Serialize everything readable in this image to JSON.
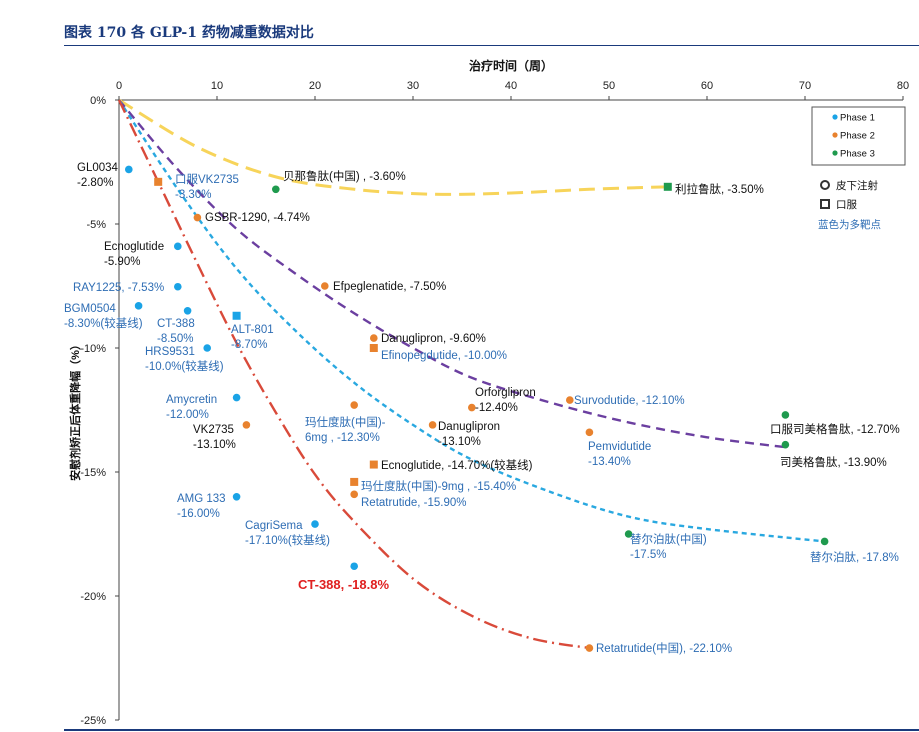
{
  "page": {
    "title": "图表 170 各 GLP-1 药物减重数据对比"
  },
  "chart_data": {
    "type": "scatter",
    "title": "",
    "xlabel": "治疗时间（周）",
    "ylabel": "安慰剂矫正后体重降幅（%）",
    "xlim": [
      0,
      80
    ],
    "ylim": [
      -25,
      0
    ],
    "x_ticks": [
      0,
      10,
      20,
      30,
      40,
      50,
      60,
      70,
      80
    ],
    "y_ticks": [
      0,
      -5,
      -10,
      -15,
      -20,
      -25
    ],
    "y_tick_labels": [
      "0%",
      "-5%",
      "-10%",
      "-15%",
      "-20%",
      "-25%"
    ],
    "grid": false,
    "x_axis_position": "top",
    "legend_position": "top-right",
    "legend": {
      "phases": [
        {
          "label": "Phase 1",
          "color": "#1aa3e6"
        },
        {
          "label": "Phase 2",
          "color": "#e8822e"
        },
        {
          "label": "Phase 3",
          "color": "#1f9a4e"
        }
      ],
      "routes": [
        {
          "label": "皮下注射",
          "shape": "circle"
        },
        {
          "label": "口服",
          "shape": "square"
        }
      ],
      "note": "蓝色为多靶点"
    },
    "colors": {
      "phase1": "#1aa3e6",
      "phase2": "#e8822e",
      "phase3": "#1f9a4e",
      "multi_target_text": "#2e6db4",
      "single_target_text": "#111111",
      "highlight": "#e02020"
    },
    "points": [
      {
        "x": 1,
        "y": -2.8,
        "phase": 1,
        "shape": "circle",
        "color": "black",
        "label": [
          "GL0034",
          "-2.80%"
        ]
      },
      {
        "x": 4,
        "y": -3.3,
        "phase": 2,
        "shape": "square",
        "color": "blue",
        "label": [
          "口服VK2735",
          "-3.30%"
        ]
      },
      {
        "x": 16,
        "y": -3.6,
        "phase": 3,
        "shape": "circle",
        "color": "black",
        "label": [
          "贝那鲁肽(中国) , -3.60%"
        ]
      },
      {
        "x": 56,
        "y": -3.5,
        "phase": 3,
        "shape": "square",
        "color": "black",
        "label": [
          "利拉鲁肽, -3.50%"
        ]
      },
      {
        "x": 8,
        "y": -4.74,
        "phase": 2,
        "shape": "circle",
        "color": "black",
        "label": [
          "GSBR-1290, -4.74%"
        ]
      },
      {
        "x": 6,
        "y": -5.9,
        "phase": 1,
        "shape": "circle",
        "color": "black",
        "label": [
          "Ecnoglutide",
          "-5.90%"
        ]
      },
      {
        "x": 6,
        "y": -7.53,
        "phase": 1,
        "shape": "circle",
        "color": "blue",
        "label": [
          "RAY1225, -7.53%"
        ]
      },
      {
        "x": 21,
        "y": -7.5,
        "phase": 2,
        "shape": "circle",
        "color": "black",
        "label": [
          "Efpeglenatide, -7.50%"
        ]
      },
      {
        "x": 2,
        "y": -8.3,
        "phase": 1,
        "shape": "circle",
        "color": "blue",
        "label": [
          "BGM0504",
          "-8.30%(较基线)"
        ]
      },
      {
        "x": 7,
        "y": -8.5,
        "phase": 1,
        "shape": "circle",
        "color": "blue",
        "label": [
          "CT-388",
          "-8.50%"
        ]
      },
      {
        "x": 12,
        "y": -8.7,
        "phase": 1,
        "shape": "square",
        "color": "blue",
        "label": [
          "ALT-801",
          "-8.70%"
        ]
      },
      {
        "x": 9,
        "y": -10.0,
        "phase": 1,
        "shape": "circle",
        "color": "blue",
        "label": [
          "HRS9531",
          "-10.0%(较基线)"
        ]
      },
      {
        "x": 26,
        "y": -9.6,
        "phase": 2,
        "shape": "circle",
        "color": "black",
        "label": [
          "Danuglipron, -9.60%"
        ]
      },
      {
        "x": 26,
        "y": -10.0,
        "phase": 2,
        "shape": "square",
        "color": "blue",
        "label": [
          "Efinopegdutide, -10.00%"
        ]
      },
      {
        "x": 12,
        "y": -12.0,
        "phase": 1,
        "shape": "circle",
        "color": "blue",
        "label": [
          "Amycretin",
          "-12.00%"
        ]
      },
      {
        "x": 13,
        "y": -13.1,
        "phase": 2,
        "shape": "circle",
        "color": "black",
        "label": [
          "VK2735",
          "-13.10%"
        ]
      },
      {
        "x": 24,
        "y": -12.3,
        "phase": 2,
        "shape": "circle",
        "color": "blue",
        "label": [
          "玛仕度肽(中国)-",
          "6mg , -12.30%"
        ]
      },
      {
        "x": 32,
        "y": -13.1,
        "phase": 2,
        "shape": "circle",
        "color": "black",
        "label": [
          "Danuglipron",
          "-13.10%"
        ]
      },
      {
        "x": 36,
        "y": -12.4,
        "phase": 2,
        "shape": "circle",
        "color": "black",
        "label": [
          "Orforglipron",
          "-12.40%"
        ]
      },
      {
        "x": 46,
        "y": -12.1,
        "phase": 2,
        "shape": "circle",
        "color": "blue",
        "label": [
          "Survodutide, -12.10%"
        ]
      },
      {
        "x": 48,
        "y": -13.4,
        "phase": 2,
        "shape": "circle",
        "color": "blue",
        "label": [
          "Pemvidutide",
          "-13.40%"
        ]
      },
      {
        "x": 68,
        "y": -12.7,
        "phase": 3,
        "shape": "circle",
        "color": "black",
        "label": [
          "口服司美格鲁肽, -12.70%"
        ]
      },
      {
        "x": 68,
        "y": -13.9,
        "phase": 3,
        "shape": "circle",
        "color": "black",
        "label": [
          "司美格鲁肽, -13.90%"
        ]
      },
      {
        "x": 26,
        "y": -14.7,
        "phase": 2,
        "shape": "square",
        "color": "black",
        "label": [
          "Ecnoglutide, -14.70%(较基线)"
        ]
      },
      {
        "x": 24,
        "y": -15.4,
        "phase": 2,
        "shape": "square",
        "color": "blue",
        "label": [
          "玛仕度肽(中国)-9mg , -15.40%"
        ]
      },
      {
        "x": 24,
        "y": -15.9,
        "phase": 2,
        "shape": "circle",
        "color": "blue",
        "label": [
          "Retatrutide, -15.90%"
        ]
      },
      {
        "x": 12,
        "y": -16.0,
        "phase": 1,
        "shape": "circle",
        "color": "blue",
        "label": [
          "AMG 133",
          "-16.00%"
        ]
      },
      {
        "x": 20,
        "y": -17.1,
        "phase": 1,
        "shape": "circle",
        "color": "blue",
        "label": [
          "CagriSema",
          "-17.10%(较基线)"
        ]
      },
      {
        "x": 52,
        "y": -17.5,
        "phase": 3,
        "shape": "circle",
        "color": "blue",
        "label": [
          "替尔泊肽(中国)",
          "-17.5%"
        ]
      },
      {
        "x": 72,
        "y": -17.8,
        "phase": 3,
        "shape": "circle",
        "color": "blue",
        "label": [
          "替尔泊肽, -17.8%"
        ]
      },
      {
        "x": 24,
        "y": -18.8,
        "phase": 1,
        "shape": "circle",
        "color": "red",
        "label": [
          "CT-388, -18.8%"
        ]
      },
      {
        "x": 48,
        "y": -22.1,
        "phase": 2,
        "shape": "circle",
        "color": "blue",
        "label": [
          "Retatrutide(中国), -22.10%"
        ]
      }
    ],
    "trend_lines": [
      {
        "color": "#f7d45a",
        "style": "long-dash",
        "points": [
          [
            0,
            0
          ],
          [
            8,
            -1.9
          ],
          [
            16,
            -3.1
          ],
          [
            24,
            -3.6
          ],
          [
            32,
            -3.8
          ],
          [
            40,
            -3.75
          ],
          [
            48,
            -3.6
          ],
          [
            56,
            -3.5
          ]
        ]
      },
      {
        "color": "#6b3fa0",
        "style": "dash",
        "points": [
          [
            0,
            0
          ],
          [
            6,
            -2.8
          ],
          [
            12,
            -5.2
          ],
          [
            18,
            -7.0
          ],
          [
            24,
            -8.6
          ],
          [
            30,
            -10.0
          ],
          [
            36,
            -11.2
          ],
          [
            44,
            -12.2
          ],
          [
            52,
            -13.0
          ],
          [
            60,
            -13.6
          ],
          [
            68,
            -14.0
          ]
        ]
      },
      {
        "color": "#29a8e0",
        "style": "short-dash",
        "points": [
          [
            0,
            0
          ],
          [
            6,
            -3.6
          ],
          [
            12,
            -6.8
          ],
          [
            18,
            -9.3
          ],
          [
            24,
            -11.4
          ],
          [
            30,
            -13.1
          ],
          [
            36,
            -14.5
          ],
          [
            44,
            -15.8
          ],
          [
            52,
            -16.8
          ],
          [
            60,
            -17.3
          ],
          [
            72,
            -17.8
          ]
        ]
      },
      {
        "color": "#d94a3a",
        "style": "dash-dot",
        "points": [
          [
            0,
            0
          ],
          [
            4,
            -3.3
          ],
          [
            8,
            -6.6
          ],
          [
            12,
            -9.8
          ],
          [
            16,
            -12.6
          ],
          [
            20,
            -15.1
          ],
          [
            24,
            -17.0
          ],
          [
            30,
            -19.3
          ],
          [
            36,
            -20.8
          ],
          [
            42,
            -21.7
          ],
          [
            48,
            -22.1
          ]
        ]
      }
    ]
  }
}
